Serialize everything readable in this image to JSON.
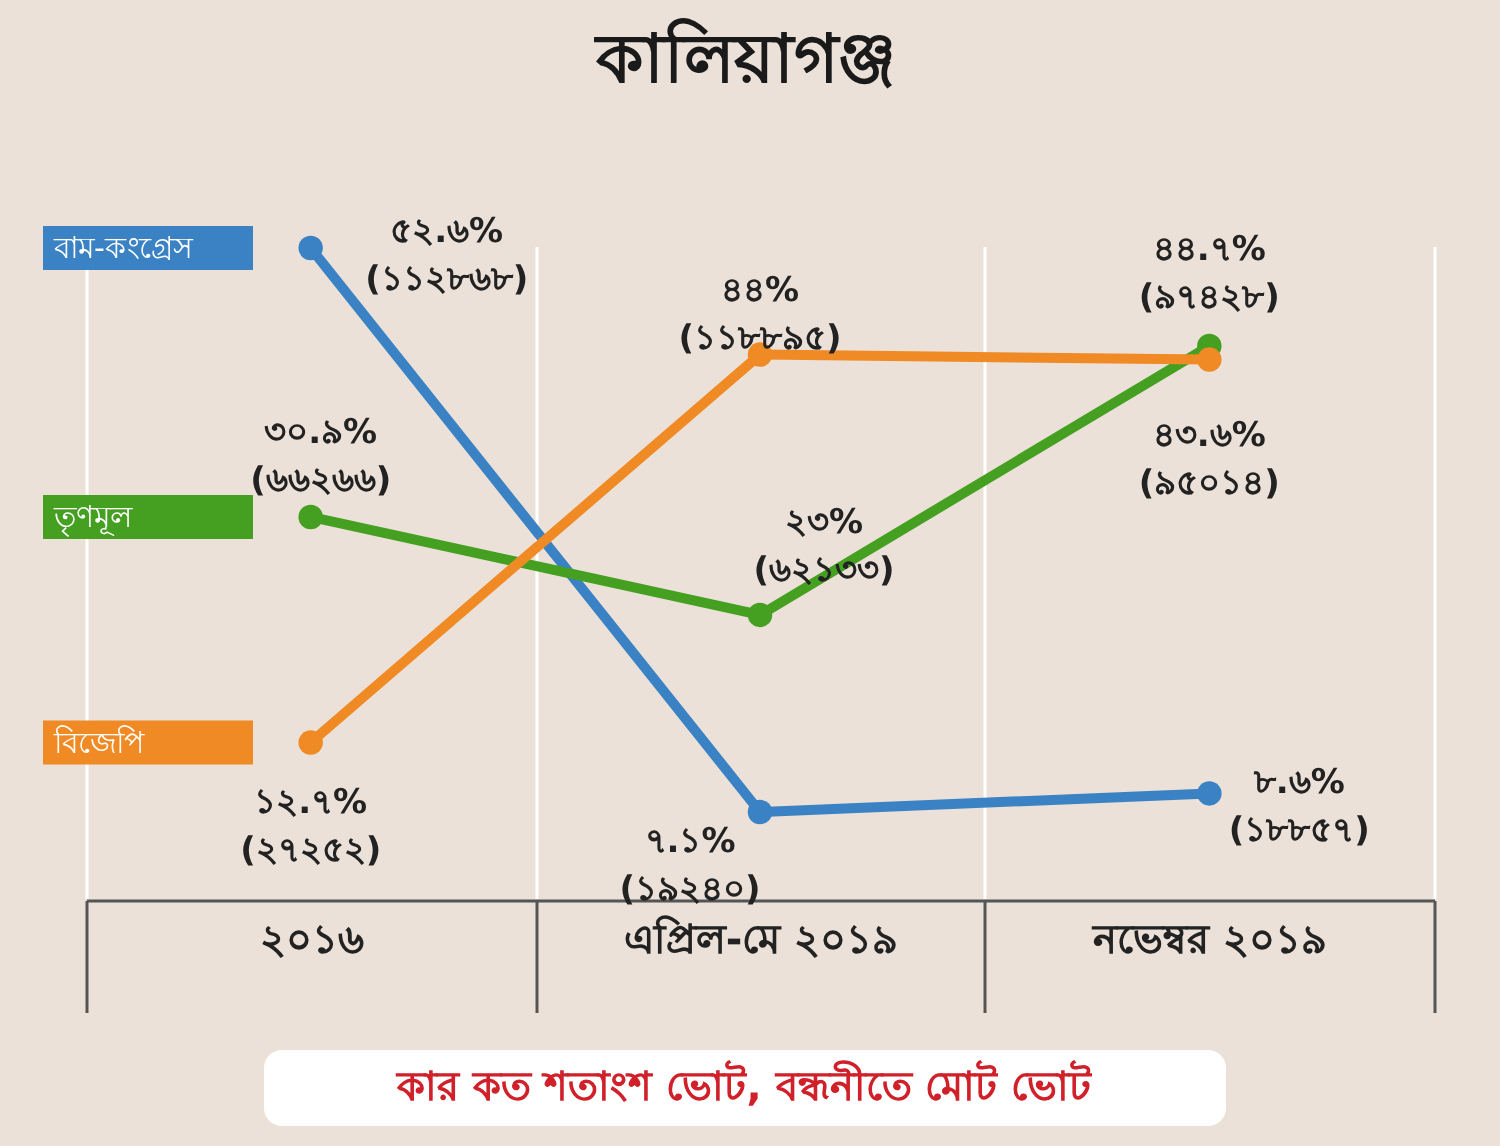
{
  "chart_data": {
    "type": "line",
    "title": "কালিয়াগঞ্জ",
    "categories": [
      "২০১৬",
      "এপ্রিল-মে ২০১৯",
      "নভেম্বর ২০১৯"
    ],
    "series": [
      {
        "name": "বাম-কংগ্রেস",
        "color": "#3a82c4",
        "values": [
          52.6,
          7.1,
          8.6
        ],
        "value_labels": [
          "৫২.৬%\n(১১২৮৬৮)",
          "৭.১%\n(১৯২৪০)",
          "৮.৬%\n(১৮৮৫৭)"
        ]
      },
      {
        "name": "তৃণমূল",
        "color": "#45a021",
        "values": [
          30.9,
          23,
          44.7
        ],
        "value_labels": [
          "৩০.৯%\n(৬৬২৬৬)",
          "২৩%\n(৬২১৩৩)",
          "৪৪.৭%\n(৯৭৪২৮)"
        ]
      },
      {
        "name": "বিজেপি",
        "color": "#f08a24",
        "values": [
          12.7,
          44,
          43.6
        ],
        "value_labels": [
          "১২.৭%\n(২৭২৫২)",
          "৪৪%\n(১১৮৮৯৫)",
          "৪৩.৬%\n(৯৫০১৪)"
        ]
      }
    ],
    "tick_labels": "x",
    "grid": "x",
    "marker": "circle",
    "line_style": "solid",
    "annotations": [
      "কার কত শতাংশ ভোট, বন্ধনীতে মোট ভোট"
    ]
  }
}
